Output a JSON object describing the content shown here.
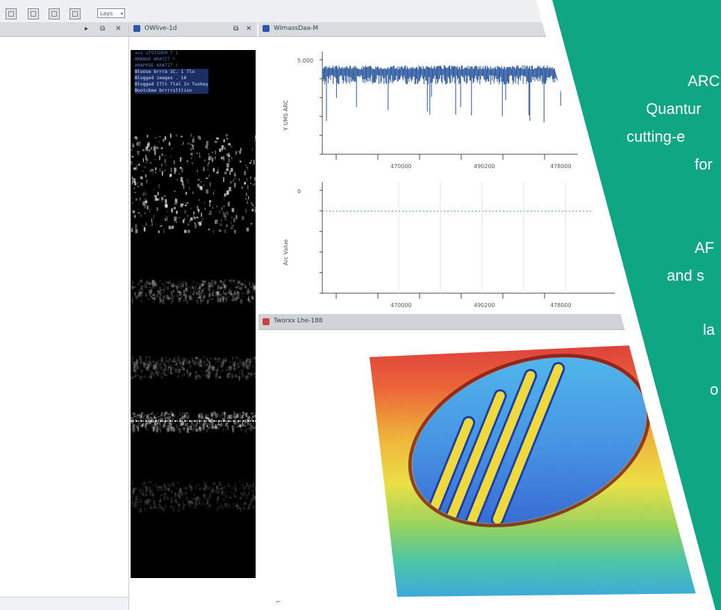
{
  "toolbar": {
    "select_value": "Lays"
  },
  "panels": {
    "middle_tab_title": "OWlive-1d",
    "right_tab_title": "WImassDaa-M",
    "map_tab_title": "Tworxx Lhe-188"
  },
  "info_overlay": {
    "lines": [
      "avs sTSTSDEM   T  i",
      "AMANUE ARATIT   !",
      "AMAPPOE ARATIT   !",
      "Bloose brrra       1C. 1 Tlo",
      "Blogged images   .  10",
      "Blogged ITlt Tlal In Tuskey",
      "Bootcbee brrrrslttion"
    ]
  },
  "chart_data": [
    {
      "type": "line",
      "title": "",
      "xlabel": "",
      "ylabel": "Y UMS ARC",
      "x_tick_labels": [
        "470000",
        "490200",
        "478000"
      ],
      "y_tick_labels": [
        "5.000"
      ],
      "series": [
        {
          "color": "#1f4f9a",
          "description": "dense oscillation around top tick"
        }
      ]
    },
    {
      "type": "line",
      "title": "",
      "xlabel": "",
      "ylabel": "Arc Value",
      "x_tick_labels": [
        "470000",
        "490200",
        "478000"
      ],
      "y_tick_labels": [
        "0"
      ],
      "series": [
        {
          "color": "#2e9a3c",
          "description": "flat dotted line at 0"
        }
      ]
    }
  ],
  "overlay": {
    "color": "#0fa684",
    "text_lines": [
      "ARC",
      "Quantur",
      "cutting-e",
      "for",
      "AF",
      "and s",
      "la",
      "o"
    ]
  }
}
